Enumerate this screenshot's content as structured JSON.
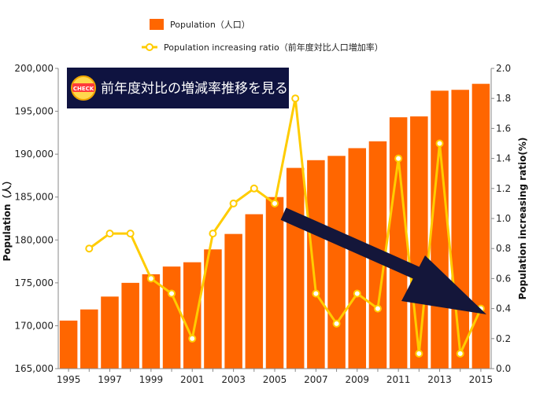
{
  "chart_data": {
    "type": "bar",
    "categories": [
      "1995",
      "1996",
      "1997",
      "1998",
      "1999",
      "2000",
      "2001",
      "2002",
      "2003",
      "2004",
      "2005",
      "2006",
      "2007",
      "2008",
      "2009",
      "2010",
      "2011",
      "2012",
      "2013",
      "2014",
      "2015"
    ],
    "x_tick_labels": [
      "1995",
      "1997",
      "1999",
      "2001",
      "2003",
      "2005",
      "2007",
      "2009",
      "2011",
      "2013",
      "2015"
    ],
    "series": [
      {
        "name": "Population（人口）",
        "type": "bar",
        "axis": "left",
        "color": "#ff6600",
        "values": [
          170600,
          171900,
          173400,
          175000,
          176000,
          176900,
          177400,
          178900,
          180700,
          183000,
          185000,
          188400,
          189300,
          189800,
          190700,
          191500,
          194300,
          194400,
          197400,
          197500,
          198200
        ]
      },
      {
        "name": "Population increasing ratio（前年度対比人口増加率）",
        "type": "line",
        "axis": "right",
        "color": "#ffcc00",
        "values": [
          null,
          0.8,
          0.9,
          0.9,
          0.6,
          0.5,
          0.2,
          0.9,
          1.1,
          1.2,
          1.1,
          1.8,
          0.5,
          0.3,
          0.5,
          0.4,
          1.4,
          0.1,
          1.5,
          0.1,
          0.4
        ]
      }
    ],
    "ylabel_left": "Population（人）",
    "ylabel_right": "Population increasing ratio(%)",
    "ylim_left": [
      165000,
      200000
    ],
    "ylim_right": [
      0.0,
      2.0
    ],
    "y_ticks_left": [
      "165,000",
      "170,000",
      "175,000",
      "180,000",
      "185,000",
      "190,000",
      "195,000",
      "200,000"
    ],
    "y_ticks_right": [
      "0.0",
      "0.2",
      "0.4",
      "0.6",
      "0.8",
      "1.0",
      "1.2",
      "1.4",
      "1.6",
      "1.8",
      "2.0"
    ],
    "legend_position": "top-center",
    "grid": false
  },
  "annotation": {
    "badge_text": "CHECK",
    "banner_text": "前年度対比の増減率推移を見る",
    "arrow_icon": "down-right-arrow-icon",
    "banner_bg": "#0f1340",
    "arrow_color": "#14163a"
  }
}
